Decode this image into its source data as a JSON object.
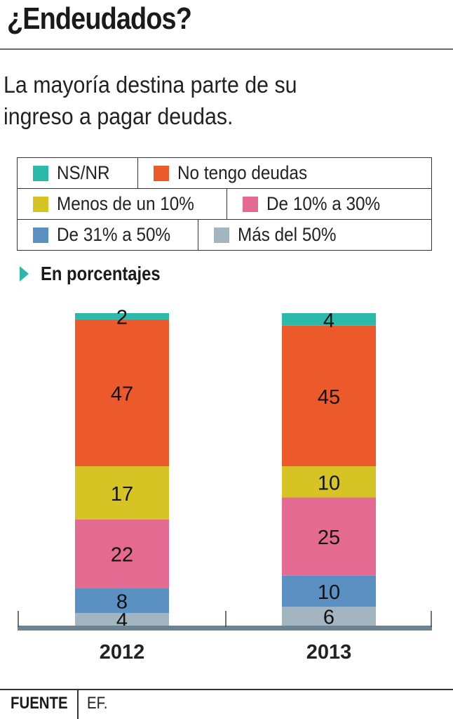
{
  "header": {
    "title": "¿Endeudados?",
    "subtitle_line1": "La mayoría destina parte de su",
    "subtitle_line2": "ingreso a pagar deudas."
  },
  "legend": {
    "rows": [
      [
        {
          "label": "NS/NR",
          "color": "#2bb9ab"
        },
        {
          "label": "No tengo deudas",
          "color": "#ec5a2b"
        }
      ],
      [
        {
          "label": "Menos de un 10%",
          "color": "#d6c324"
        },
        {
          "label": "De 10% a 30%",
          "color": "#e46a92"
        }
      ],
      [
        {
          "label": "De 31% a 50%",
          "color": "#5b91c2"
        },
        {
          "label": "Más del 50%",
          "color": "#a3b5c0"
        }
      ]
    ]
  },
  "unit_label": "En porcentajes",
  "chart_data": {
    "type": "bar",
    "stacked": true,
    "title": "¿Endeudados?",
    "subtitle": "En porcentajes",
    "categories": [
      "2012",
      "2013"
    ],
    "series": [
      {
        "name": "Más del 50%",
        "color": "#a3b5c0",
        "values": [
          4,
          6
        ]
      },
      {
        "name": "De 31% a 50%",
        "color": "#5b91c2",
        "values": [
          8,
          10
        ]
      },
      {
        "name": "De 10% a 30%",
        "color": "#e46a92",
        "values": [
          22,
          25
        ]
      },
      {
        "name": "Menos de un 10%",
        "color": "#d6c324",
        "values": [
          17,
          10
        ]
      },
      {
        "name": "No tengo deudas",
        "color": "#ec5a2b",
        "values": [
          47,
          45
        ]
      },
      {
        "name": "NS/NR",
        "color": "#2bb9ab",
        "values": [
          2,
          4
        ]
      }
    ],
    "ylim": [
      0,
      100
    ],
    "xlabel": "",
    "ylabel": "",
    "grid": false,
    "legend_position": "top"
  },
  "footer": {
    "source_label": "FUENTE",
    "source_value": "EF."
  }
}
